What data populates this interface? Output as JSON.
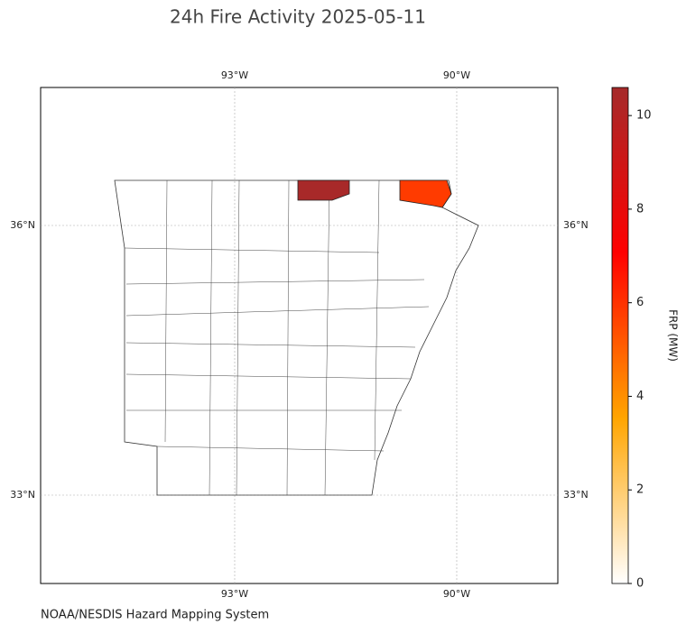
{
  "title": "24h Fire Activity 2025-05-11",
  "map": {
    "lon_labels": [
      "93°W",
      "90°W"
    ],
    "lat_labels": [
      "36°N",
      "33°N"
    ],
    "fires": [
      {
        "value": 10.5
      },
      {
        "value": 5.8
      }
    ]
  },
  "colorbar": {
    "label": "FRP (MW)",
    "lim": [
      0,
      10.6
    ],
    "ticks": [
      0,
      2,
      4,
      6,
      8,
      10
    ],
    "colors": [
      "#ffffff",
      "#ffa500",
      "#ff0000",
      "#a52a2a"
    ]
  },
  "source": "NOAA/NESDIS Hazard Mapping System"
}
